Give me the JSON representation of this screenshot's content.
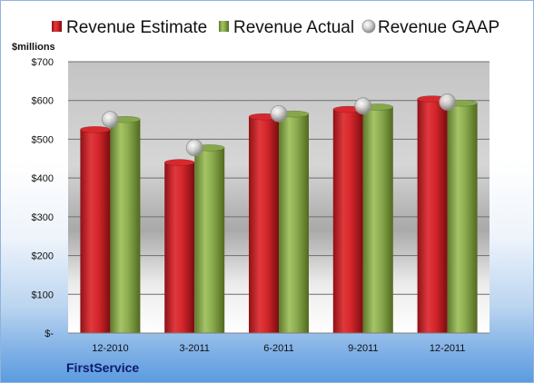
{
  "company": "FirstService",
  "chart_data": {
    "type": "bar",
    "ylabel": "$millions",
    "categories": [
      "12-2010",
      "3-2011",
      "6-2011",
      "9-2011",
      "12-2011"
    ],
    "series": [
      {
        "name": "Revenue Estimate",
        "kind": "bar",
        "color": "#d7282d",
        "values": [
          525,
          440,
          558,
          577,
          604
        ]
      },
      {
        "name": "Revenue Actual",
        "kind": "bar",
        "color": "#86a84a",
        "values": [
          551,
          478,
          565,
          583,
          593
        ]
      },
      {
        "name": "Revenue GAAP",
        "kind": "marker",
        "color": "#c9c9c9",
        "values": [
          551,
          478,
          566,
          586,
          596
        ]
      }
    ],
    "ylim": [
      0,
      700
    ],
    "yticks": [
      0,
      100,
      200,
      300,
      400,
      500,
      600,
      700
    ],
    "yticklabels": [
      "$-",
      "$100",
      "$200",
      "$300",
      "$400",
      "$500",
      "$600",
      "$700"
    ],
    "grid": true,
    "legend": "top"
  }
}
